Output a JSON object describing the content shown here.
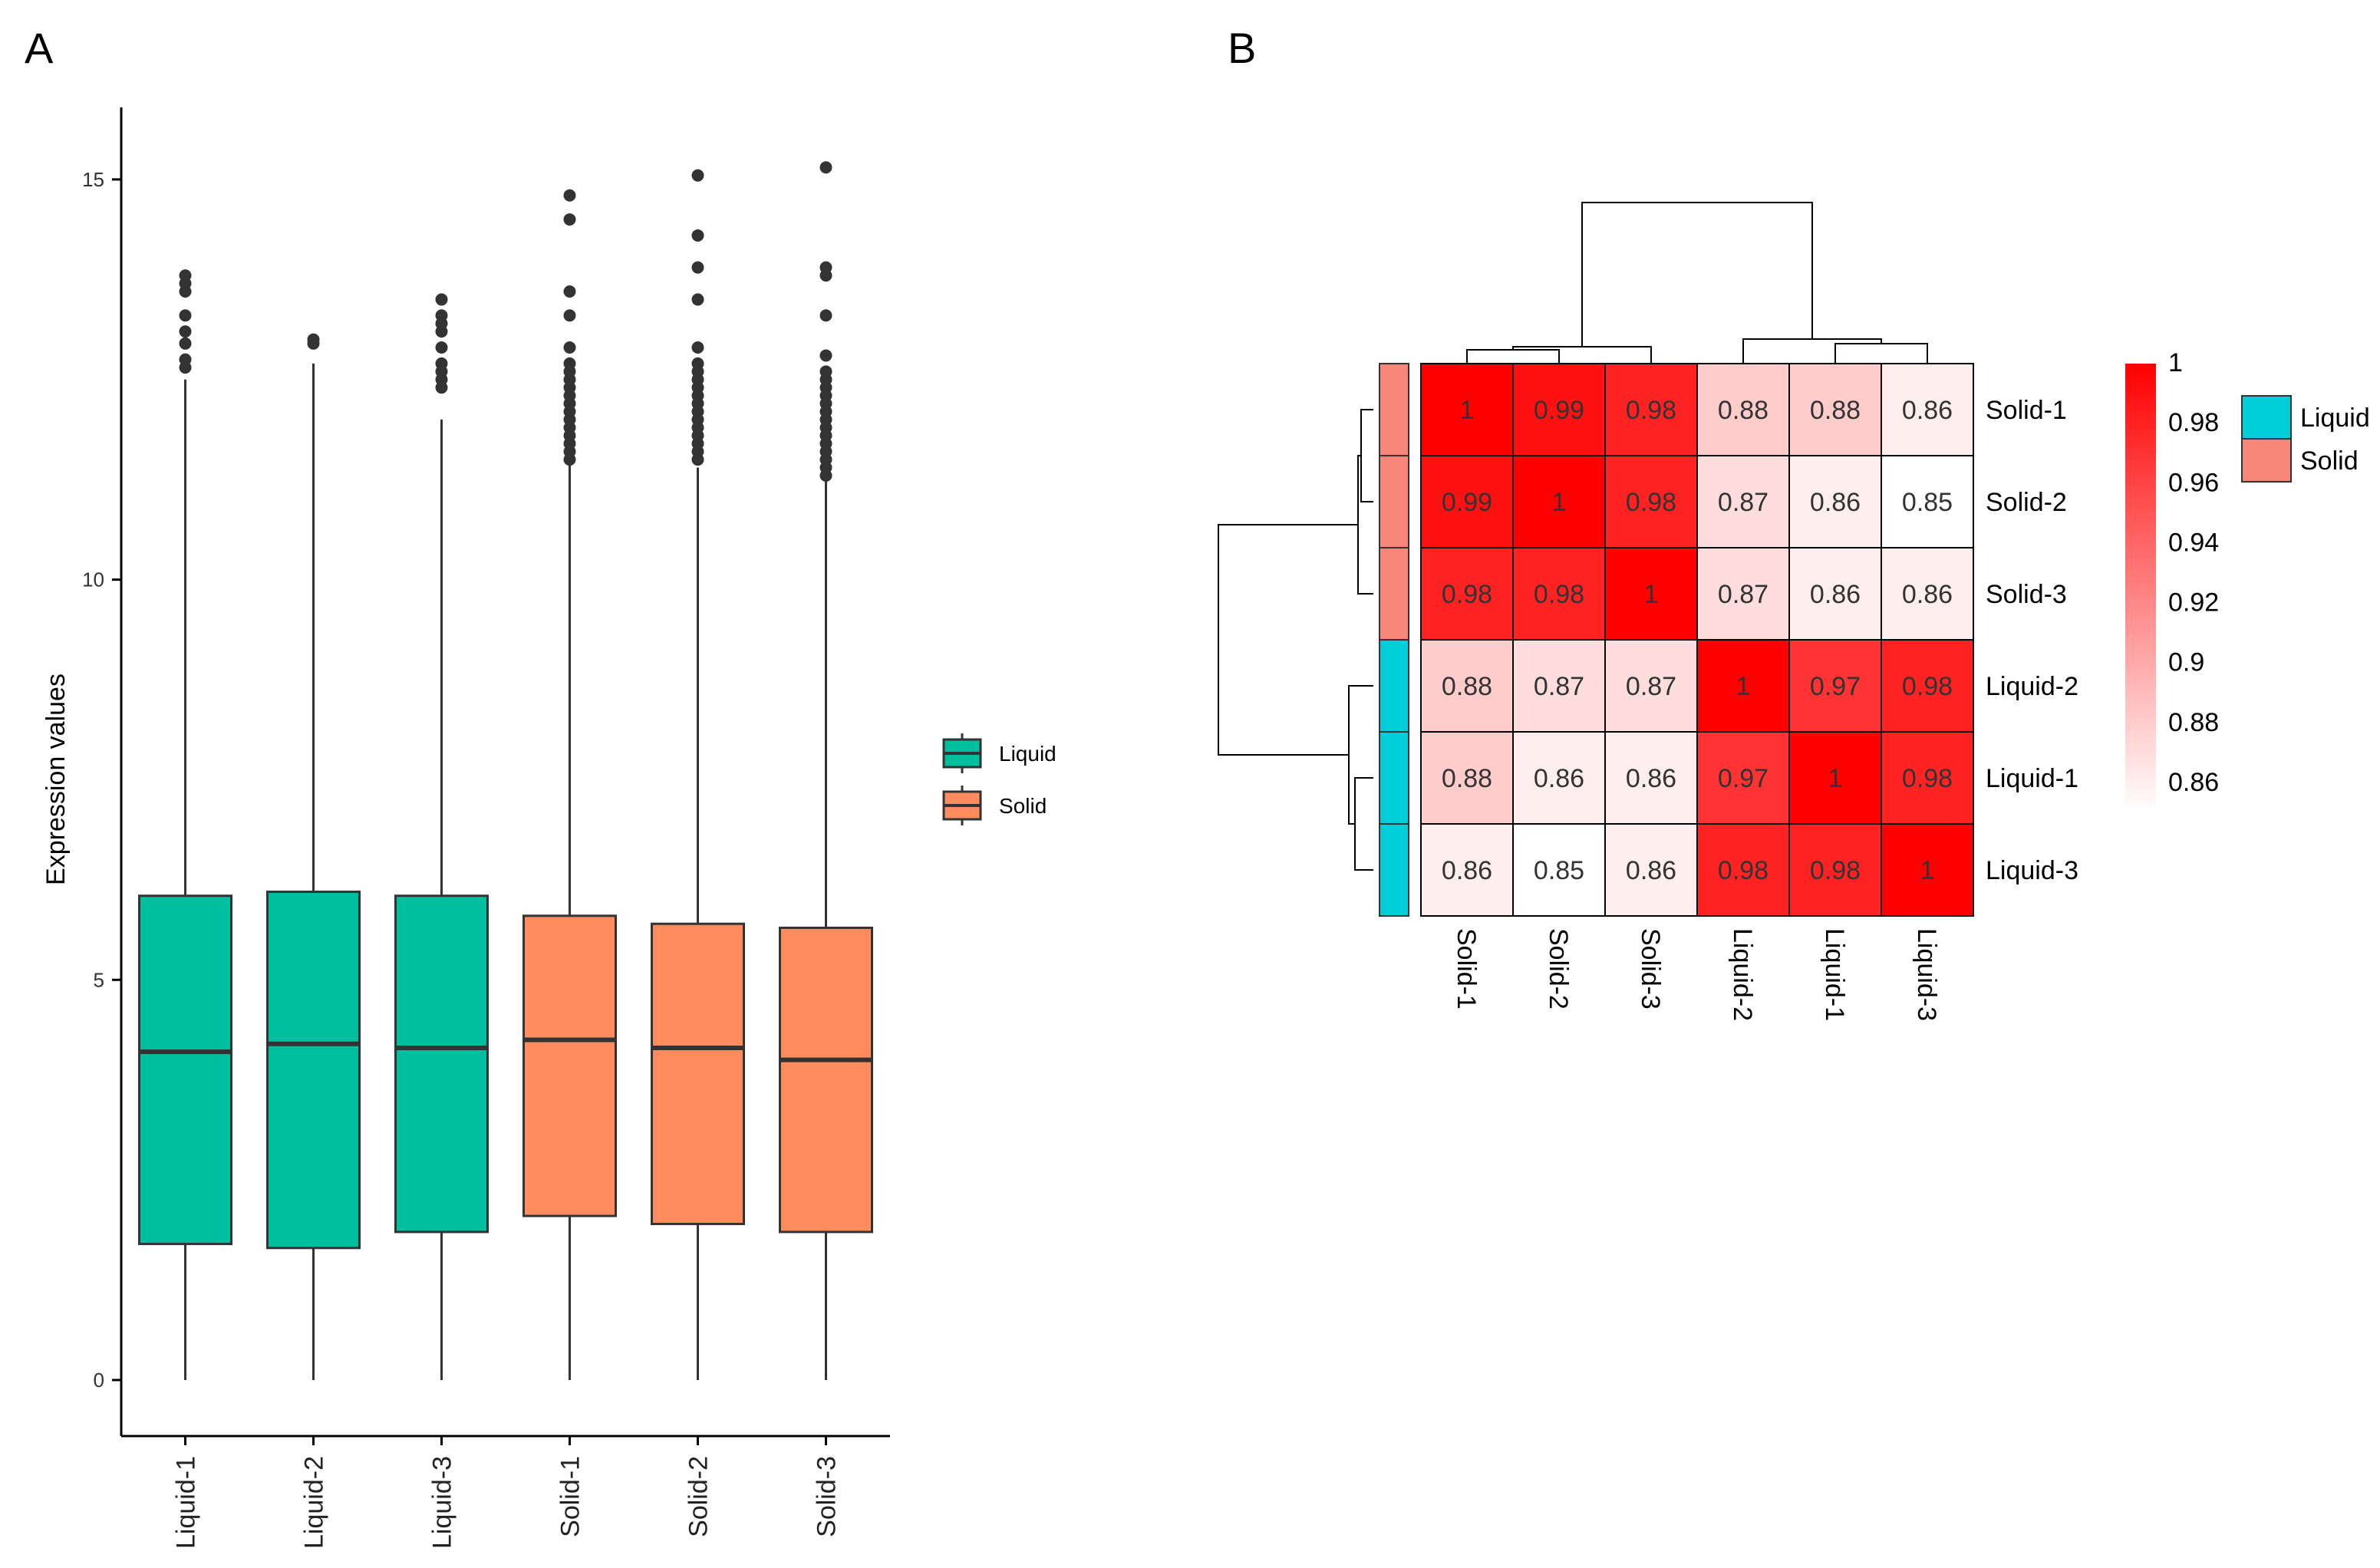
{
  "panel_labels": {
    "a": "A",
    "b": "B"
  },
  "colors": {
    "liquid_box": "#00BF9E",
    "solid_box": "#FF8C5E",
    "liquid_anno": "#00CED8",
    "solid_anno": "#F8877A",
    "heat_high": "#FF0000",
    "heat_low": "#FFFFFF",
    "outline": "#333333"
  },
  "chart_data": [
    {
      "type": "box",
      "title": "",
      "xlabel": "",
      "ylabel": "Expression values",
      "ylim": [
        -0.7,
        15.9
      ],
      "yticks": [
        0,
        5,
        10,
        15
      ],
      "categories": [
        "Liquid-1",
        "Liquid-2",
        "Liquid-3",
        "Solid-1",
        "Solid-2",
        "Solid-3"
      ],
      "groups": [
        "Liquid",
        "Liquid",
        "Liquid",
        "Solid",
        "Solid",
        "Solid"
      ],
      "legend": [
        "Liquid",
        "Solid"
      ],
      "boxes": [
        {
          "min": 0,
          "q1": 1.7,
          "median": 4.1,
          "q3": 6.05,
          "max": 12.5,
          "outliers": [
            12.65,
            12.75,
            12.95,
            13.1,
            13.3,
            13.6,
            13.7,
            13.8
          ]
        },
        {
          "min": 0,
          "q1": 1.65,
          "median": 4.2,
          "q3": 6.1,
          "max": 12.7,
          "outliers": [
            12.95,
            13.0
          ]
        },
        {
          "min": 0,
          "q1": 1.85,
          "median": 4.15,
          "q3": 6.05,
          "max": 12.0,
          "outliers": [
            12.4,
            12.5,
            12.6,
            12.7,
            12.9,
            13.1,
            13.2,
            13.3,
            13.5
          ]
        },
        {
          "min": 0,
          "q1": 2.05,
          "median": 4.25,
          "q3": 5.8,
          "max": 11.5,
          "outliers": [
            11.5,
            11.6,
            11.7,
            11.8,
            11.9,
            12.0,
            12.1,
            12.2,
            12.3,
            12.4,
            12.5,
            12.6,
            12.7,
            12.9,
            13.3,
            13.6,
            14.5,
            14.8
          ]
        },
        {
          "min": 0,
          "q1": 1.95,
          "median": 4.15,
          "q3": 5.7,
          "max": 11.4,
          "outliers": [
            11.5,
            11.6,
            11.7,
            11.8,
            11.9,
            12.0,
            12.1,
            12.2,
            12.3,
            12.4,
            12.5,
            12.6,
            12.7,
            12.9,
            13.5,
            13.9,
            14.3,
            15.05
          ]
        },
        {
          "min": 0,
          "q1": 1.85,
          "median": 4.0,
          "q3": 5.65,
          "max": 11.3,
          "outliers": [
            11.3,
            11.4,
            11.5,
            11.6,
            11.7,
            11.8,
            11.9,
            12.0,
            12.1,
            12.2,
            12.3,
            12.4,
            12.5,
            12.6,
            12.8,
            13.3,
            13.8,
            13.9,
            15.15
          ]
        }
      ]
    },
    {
      "type": "heatmap",
      "title": "",
      "rows": [
        "Solid-1",
        "Solid-2",
        "Solid-3",
        "Liquid-2",
        "Liquid-1",
        "Liquid-3"
      ],
      "cols": [
        "Solid-1",
        "Solid-2",
        "Solid-3",
        "Liquid-2",
        "Liquid-1",
        "Liquid-3"
      ],
      "values": [
        [
          1,
          0.99,
          0.98,
          0.88,
          0.88,
          0.86
        ],
        [
          0.99,
          1,
          0.98,
          0.87,
          0.86,
          0.85
        ],
        [
          0.98,
          0.98,
          1,
          0.87,
          0.86,
          0.86
        ],
        [
          0.88,
          0.87,
          0.87,
          1,
          0.97,
          0.98
        ],
        [
          0.88,
          0.86,
          0.86,
          0.97,
          1,
          0.98
        ],
        [
          0.86,
          0.85,
          0.86,
          0.98,
          0.98,
          1
        ]
      ],
      "cell_labels": [
        [
          "1",
          "0.99",
          "0.98",
          "0.88",
          "0.88",
          "0.86"
        ],
        [
          "0.99",
          "1",
          "0.98",
          "0.87",
          "0.86",
          "0.85"
        ],
        [
          "0.98",
          "0.98",
          "1",
          "0.87",
          "0.86",
          "0.86"
        ],
        [
          "0.88",
          "0.87",
          "0.87",
          "1",
          "0.97",
          "0.98"
        ],
        [
          "0.88",
          "0.86",
          "0.86",
          "0.97",
          "1",
          "0.98"
        ],
        [
          "0.86",
          "0.85",
          "0.86",
          "0.98",
          "0.98",
          "1"
        ]
      ],
      "row_groups": [
        "Solid",
        "Solid",
        "Solid",
        "Liquid",
        "Liquid",
        "Liquid"
      ],
      "color_range": [
        0.85,
        1
      ],
      "colorbar_ticks": [
        "1",
        "0.98",
        "0.96",
        "0.94",
        "0.92",
        "0.9",
        "0.88",
        "0.86"
      ],
      "colorbar_values": [
        1,
        0.98,
        0.96,
        0.94,
        0.92,
        0.9,
        0.88,
        0.86
      ],
      "legend": [
        "Liquid",
        "Solid"
      ],
      "dendrogram": "hierarchical clustering: {Solid-1, Solid-2, Solid-3} and {Liquid-2, Liquid-1, Liquid-3}"
    }
  ]
}
